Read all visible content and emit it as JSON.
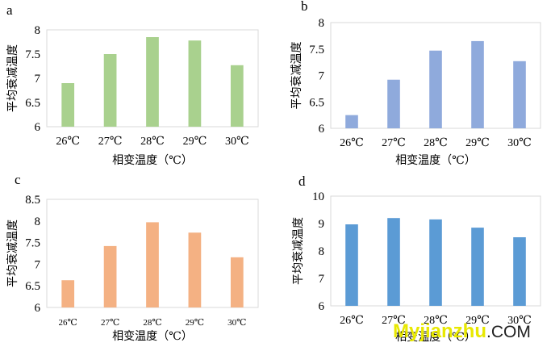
{
  "chart_data": [
    {
      "type": "bar",
      "panel_label": "a",
      "categories": [
        "26℃",
        "27℃",
        "28℃",
        "29℃",
        "30℃"
      ],
      "values": [
        6.9,
        7.5,
        7.85,
        7.78,
        7.27
      ],
      "ylim": [
        6,
        8
      ],
      "yticks": [
        "6",
        "6.5",
        "7",
        "7.5",
        "8"
      ],
      "ylabel": "平均衰减温度",
      "xlabel": "相变温度（℃）",
      "grid": false,
      "color": "#a9d18e"
    },
    {
      "type": "bar",
      "panel_label": "b",
      "categories": [
        "26℃",
        "27℃",
        "28℃",
        "29℃",
        "30℃"
      ],
      "values": [
        6.25,
        6.92,
        7.47,
        7.65,
        7.27
      ],
      "ylim": [
        6,
        8
      ],
      "yticks": [
        "6",
        "6.5",
        "7",
        "7.5",
        "8"
      ],
      "ylabel": "平均衰减温度",
      "xlabel": "相变温度（℃）",
      "grid": false,
      "color": "#8faadc"
    },
    {
      "type": "bar",
      "panel_label": "c",
      "categories": [
        "26℃",
        "27℃",
        "28℃",
        "29℃",
        "30℃"
      ],
      "values": [
        6.63,
        7.42,
        7.97,
        7.73,
        7.16
      ],
      "ylim": [
        6,
        8.5
      ],
      "yticks": [
        "6",
        "6.5",
        "7",
        "7.5",
        "8",
        "8.5"
      ],
      "ylabel": "平均衰减温度",
      "xlabel": "相变温度（℃）",
      "grid": false,
      "color": "#f4b183"
    },
    {
      "type": "bar",
      "panel_label": "d",
      "categories": [
        "26℃",
        "27℃",
        "28℃",
        "29℃",
        "30℃"
      ],
      "values": [
        8.97,
        9.2,
        9.15,
        8.85,
        8.5
      ],
      "ylim": [
        6,
        10
      ],
      "yticks": [
        "6",
        "7",
        "8",
        "9",
        "10"
      ],
      "ylabel": "平均衰减温度",
      "xlabel": "相变温度（℃）",
      "grid": false,
      "color": "#5b9bd5"
    }
  ],
  "watermark": {
    "main": "Myjianzhu",
    "tld": ".COM"
  }
}
